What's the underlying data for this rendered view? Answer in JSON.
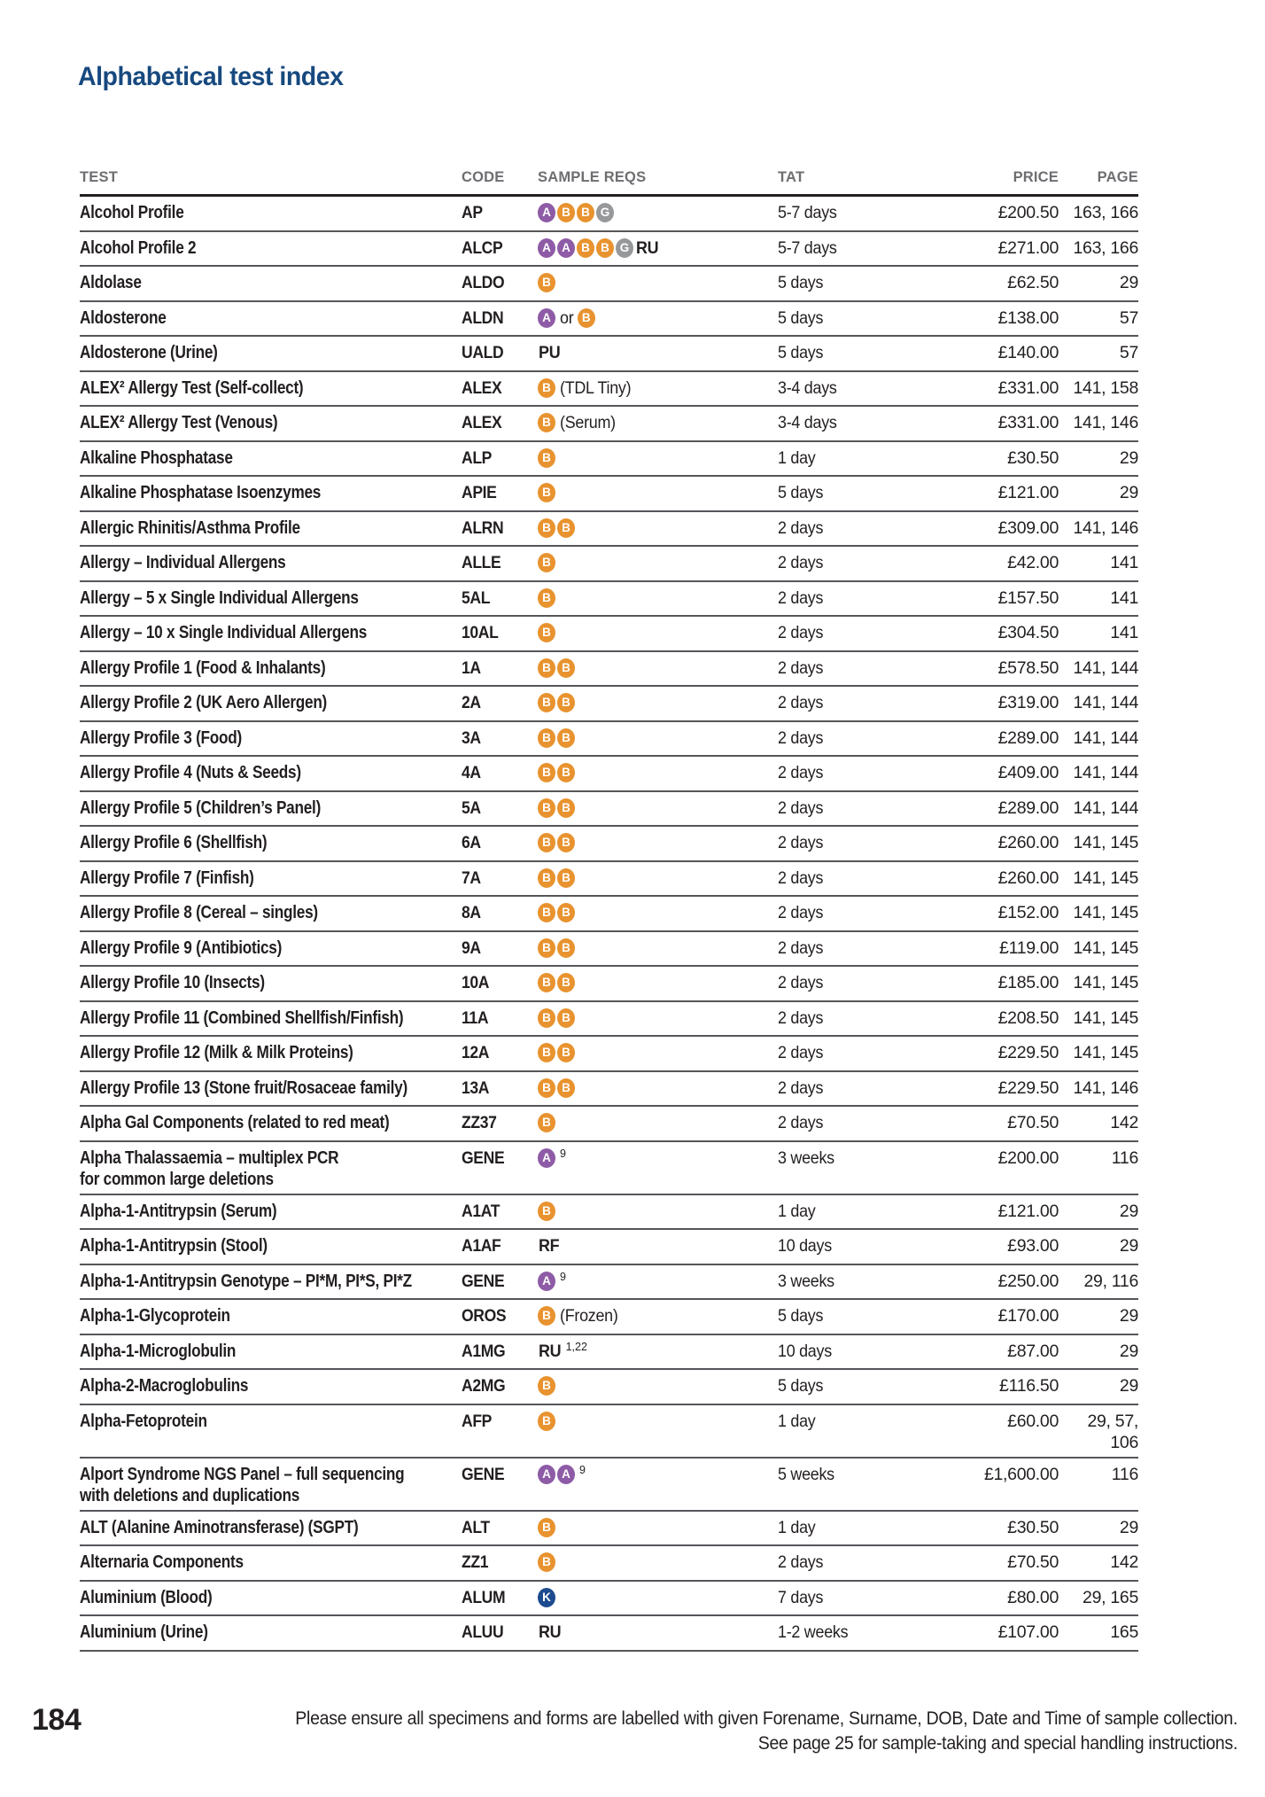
{
  "title": "Alphabetical test index",
  "page_number": "184",
  "footer": {
    "line1": "Please ensure all specimens and forms are labelled with given Forename, Surname, DOB, Date and Time of sample collection.",
    "line2": "See page 25 for sample-taking and special handling instructions."
  },
  "colors": {
    "title_blue": "#17497f",
    "header_gray": "#6d6e71",
    "body_text": "#231f20",
    "rule_light": "#55565a",
    "rule_heavy": "#231f20"
  },
  "badge_colors": {
    "A": "#8e5ba6",
    "B": "#e8932f",
    "G": "#97989a",
    "K": "#1d4b8f"
  },
  "table": {
    "headers": [
      "TEST",
      "CODE",
      "SAMPLE REQS",
      "TAT",
      "PRICE",
      "PAGE"
    ],
    "rows": [
      {
        "test": "Alcohol Profile",
        "code": "AP",
        "reqs": [
          {
            "b": "A"
          },
          {
            "b": "B"
          },
          {
            "b": "B"
          },
          {
            "b": "G"
          }
        ],
        "tat": "5-7 days",
        "price": "£200.50",
        "page": "163, 166"
      },
      {
        "test": "Alcohol Profile 2",
        "code": "ALCP",
        "reqs": [
          {
            "b": "A"
          },
          {
            "b": "A"
          },
          {
            "b": "B"
          },
          {
            "b": "B"
          },
          {
            "b": "G"
          },
          {
            "s": "RU"
          }
        ],
        "tat": "5-7 days",
        "price": "£271.00",
        "page": "163, 166"
      },
      {
        "test": "Aldolase",
        "code": "ALDO",
        "reqs": [
          {
            "b": "B"
          }
        ],
        "tat": "5 days",
        "price": "£62.50",
        "page": "29"
      },
      {
        "test": "Aldosterone",
        "code": "ALDN",
        "reqs": [
          {
            "b": "A"
          },
          {
            "t": "or"
          },
          {
            "b": "B"
          }
        ],
        "tat": "5 days",
        "price": "£138.00",
        "page": "57"
      },
      {
        "test": "Aldosterone (Urine)",
        "code": "UALD",
        "reqs": [
          {
            "s": "PU"
          }
        ],
        "tat": "5 days",
        "price": "£140.00",
        "page": "57"
      },
      {
        "test": "ALEX² Allergy Test (Self-collect)",
        "code": "ALEX",
        "reqs": [
          {
            "b": "B"
          },
          {
            "t": "(TDL Tiny)"
          }
        ],
        "tat": "3-4 days",
        "price": "£331.00",
        "page": "141, 158"
      },
      {
        "test": "ALEX² Allergy Test (Venous)",
        "code": "ALEX",
        "reqs": [
          {
            "b": "B"
          },
          {
            "t": "(Serum)"
          }
        ],
        "tat": "3-4 days",
        "price": "£331.00",
        "page": "141, 146"
      },
      {
        "test": "Alkaline Phosphatase",
        "code": "ALP",
        "reqs": [
          {
            "b": "B"
          }
        ],
        "tat": "1 day",
        "price": "£30.50",
        "page": "29"
      },
      {
        "test": "Alkaline Phosphatase Isoenzymes",
        "code": "APIE",
        "reqs": [
          {
            "b": "B"
          }
        ],
        "tat": "5 days",
        "price": "£121.00",
        "page": "29"
      },
      {
        "test": "Allergic Rhinitis/Asthma Profile",
        "code": "ALRN",
        "reqs": [
          {
            "b": "B"
          },
          {
            "b": "B"
          }
        ],
        "tat": "2 days",
        "price": "£309.00",
        "page": "141, 146"
      },
      {
        "test": "Allergy – Individual Allergens",
        "code": "ALLE",
        "reqs": [
          {
            "b": "B"
          }
        ],
        "tat": "2 days",
        "price": "£42.00",
        "page": "141"
      },
      {
        "test": "Allergy – 5 x Single Individual Allergens",
        "code": "5AL",
        "reqs": [
          {
            "b": "B"
          }
        ],
        "tat": "2 days",
        "price": "£157.50",
        "page": "141"
      },
      {
        "test": "Allergy – 10 x Single Individual Allergens",
        "code": "10AL",
        "reqs": [
          {
            "b": "B"
          }
        ],
        "tat": "2 days",
        "price": "£304.50",
        "page": "141"
      },
      {
        "test": "Allergy Profile 1 (Food & Inhalants)",
        "code": "1A",
        "reqs": [
          {
            "b": "B"
          },
          {
            "b": "B"
          }
        ],
        "tat": "2 days",
        "price": "£578.50",
        "page": "141, 144"
      },
      {
        "test": "Allergy Profile 2 (UK Aero Allergen)",
        "code": "2A",
        "reqs": [
          {
            "b": "B"
          },
          {
            "b": "B"
          }
        ],
        "tat": "2 days",
        "price": "£319.00",
        "page": "141, 144"
      },
      {
        "test": "Allergy Profile 3 (Food)",
        "code": "3A",
        "reqs": [
          {
            "b": "B"
          },
          {
            "b": "B"
          }
        ],
        "tat": "2 days",
        "price": "£289.00",
        "page": "141, 144"
      },
      {
        "test": "Allergy Profile 4 (Nuts & Seeds)",
        "code": "4A",
        "reqs": [
          {
            "b": "B"
          },
          {
            "b": "B"
          }
        ],
        "tat": "2 days",
        "price": "£409.00",
        "page": "141, 144"
      },
      {
        "test": "Allergy Profile 5 (Children’s Panel)",
        "code": "5A",
        "reqs": [
          {
            "b": "B"
          },
          {
            "b": "B"
          }
        ],
        "tat": "2 days",
        "price": "£289.00",
        "page": "141, 144"
      },
      {
        "test": "Allergy Profile 6 (Shellfish)",
        "code": "6A",
        "reqs": [
          {
            "b": "B"
          },
          {
            "b": "B"
          }
        ],
        "tat": "2 days",
        "price": "£260.00",
        "page": "141, 145"
      },
      {
        "test": "Allergy Profile 7 (Finfish)",
        "code": "7A",
        "reqs": [
          {
            "b": "B"
          },
          {
            "b": "B"
          }
        ],
        "tat": "2 days",
        "price": "£260.00",
        "page": "141, 145"
      },
      {
        "test": "Allergy Profile 8 (Cereal – singles)",
        "code": "8A",
        "reqs": [
          {
            "b": "B"
          },
          {
            "b": "B"
          }
        ],
        "tat": "2 days",
        "price": "£152.00",
        "page": "141, 145"
      },
      {
        "test": "Allergy Profile 9 (Antibiotics)",
        "code": "9A",
        "reqs": [
          {
            "b": "B"
          },
          {
            "b": "B"
          }
        ],
        "tat": "2 days",
        "price": "£119.00",
        "page": "141, 145"
      },
      {
        "test": "Allergy Profile 10 (Insects)",
        "code": "10A",
        "reqs": [
          {
            "b": "B"
          },
          {
            "b": "B"
          }
        ],
        "tat": "2 days",
        "price": "£185.00",
        "page": "141, 145"
      },
      {
        "test": "Allergy Profile 11 (Combined Shellfish/Finfish)",
        "code": "11A",
        "reqs": [
          {
            "b": "B"
          },
          {
            "b": "B"
          }
        ],
        "tat": "2 days",
        "price": "£208.50",
        "page": "141, 145"
      },
      {
        "test": "Allergy Profile 12 (Milk & Milk Proteins)",
        "code": "12A",
        "reqs": [
          {
            "b": "B"
          },
          {
            "b": "B"
          }
        ],
        "tat": "2 days",
        "price": "£229.50",
        "page": "141, 145"
      },
      {
        "test": "Allergy Profile 13 (Stone fruit/Rosaceae family)",
        "code": "13A",
        "reqs": [
          {
            "b": "B"
          },
          {
            "b": "B"
          }
        ],
        "tat": "2 days",
        "price": "£229.50",
        "page": "141, 146"
      },
      {
        "test": "Alpha Gal Components (related to red meat)",
        "code": "ZZ37",
        "reqs": [
          {
            "b": "B"
          }
        ],
        "tat": "2 days",
        "price": "£70.50",
        "page": "142"
      },
      {
        "test": "Alpha Thalassaemia – multiplex PCR\nfor common large deletions",
        "code": "GENE",
        "reqs": [
          {
            "b": "A"
          },
          {
            "u": "9"
          }
        ],
        "tat": "3 weeks",
        "price": "£200.00",
        "page": "116"
      },
      {
        "test": "Alpha-1-Antitrypsin (Serum)",
        "code": "A1AT",
        "reqs": [
          {
            "b": "B"
          }
        ],
        "tat": "1 day",
        "price": "£121.00",
        "page": "29"
      },
      {
        "test": "Alpha-1-Antitrypsin (Stool)",
        "code": "A1AF",
        "reqs": [
          {
            "s": "RF"
          }
        ],
        "tat": "10 days",
        "price": "£93.00",
        "page": "29"
      },
      {
        "test": "Alpha-1-Antitrypsin Genotype – PI*M, PI*S, PI*Z",
        "code": "GENE",
        "reqs": [
          {
            "b": "A"
          },
          {
            "u": "9"
          }
        ],
        "tat": "3 weeks",
        "price": "£250.00",
        "page": "29, 116"
      },
      {
        "test": "Alpha-1-Glycoprotein",
        "code": "OROS",
        "reqs": [
          {
            "b": "B"
          },
          {
            "t": "(Frozen)"
          }
        ],
        "tat": "5 days",
        "price": "£170.00",
        "page": "29"
      },
      {
        "test": "Alpha-1-Microglobulin",
        "code": "A1MG",
        "reqs": [
          {
            "s": "RU"
          },
          {
            "u": "1,22"
          }
        ],
        "tat": "10 days",
        "price": "£87.00",
        "page": "29"
      },
      {
        "test": "Alpha-2-Macroglobulins",
        "code": "A2MG",
        "reqs": [
          {
            "b": "B"
          }
        ],
        "tat": "5 days",
        "price": "£116.50",
        "page": "29"
      },
      {
        "test": "Alpha-Fetoprotein",
        "code": "AFP",
        "reqs": [
          {
            "b": "B"
          }
        ],
        "tat": "1 day",
        "price": "£60.00",
        "page": "29, 57,\n106"
      },
      {
        "test": "Alport Syndrome NGS Panel – full sequencing\nwith deletions and duplications",
        "code": "GENE",
        "reqs": [
          {
            "b": "A"
          },
          {
            "b": "A"
          },
          {
            "u": "9"
          }
        ],
        "tat": "5 weeks",
        "price": "£1,600.00",
        "page": "116"
      },
      {
        "test": "ALT (Alanine Aminotransferase) (SGPT)",
        "code": "ALT",
        "reqs": [
          {
            "b": "B"
          }
        ],
        "tat": "1 day",
        "price": "£30.50",
        "page": "29"
      },
      {
        "test": "Alternaria Components",
        "code": "ZZ1",
        "reqs": [
          {
            "b": "B"
          }
        ],
        "tat": "2 days",
        "price": "£70.50",
        "page": "142"
      },
      {
        "test": "Aluminium (Blood)",
        "code": "ALUM",
        "reqs": [
          {
            "b": "K"
          }
        ],
        "tat": "7 days",
        "price": "£80.00",
        "page": "29, 165"
      },
      {
        "test": "Aluminium (Urine)",
        "code": "ALUU",
        "reqs": [
          {
            "s": "RU"
          }
        ],
        "tat": "1-2 weeks",
        "price": "£107.00",
        "page": "165"
      }
    ]
  }
}
